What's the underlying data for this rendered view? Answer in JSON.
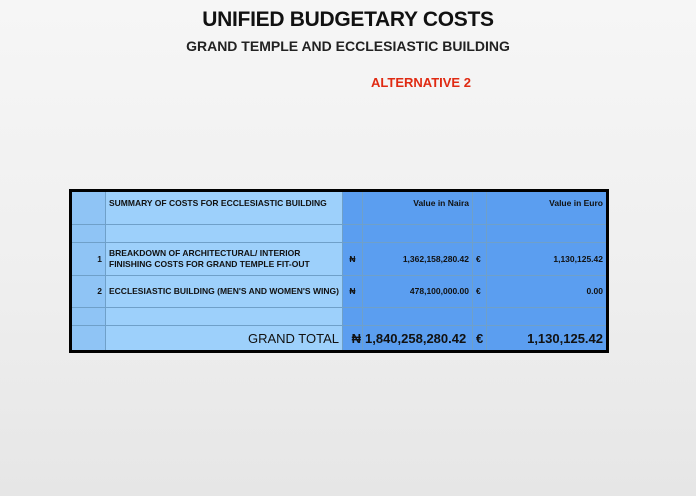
{
  "header": {
    "title": "UNIFIED BUDGETARY COSTS",
    "subtitle": "GRAND TEMPLE AND ECCLESIASTIC BUILDING",
    "alternative": "ALTERNATIVE 2"
  },
  "table": {
    "summary_header": "SUMMARY OF COSTS FOR ECCLESIASTIC BUILDING",
    "naira_header": "Value in Naira",
    "euro_header": "Value in Euro",
    "naira_symbol": "₦",
    "euro_symbol": "€",
    "rows": [
      {
        "num": "1",
        "desc": "BREAKDOWN OF ARCHITECTURAL/ INTERIOR FINISHING COSTS FOR GRAND TEMPLE FIT-OUT",
        "naira": "1,362,158,280.42",
        "euro": "1,130,125.42"
      },
      {
        "num": "2",
        "desc": "ECCLESIASTIC BUILDING (MEN'S AND WOMEN'S WING)",
        "naira": "478,100,000.00",
        "euro": "0.00"
      }
    ],
    "total": {
      "label": "GRAND TOTAL",
      "naira": "1,840,258,280.42",
      "euro": "1,130,125.42"
    }
  }
}
